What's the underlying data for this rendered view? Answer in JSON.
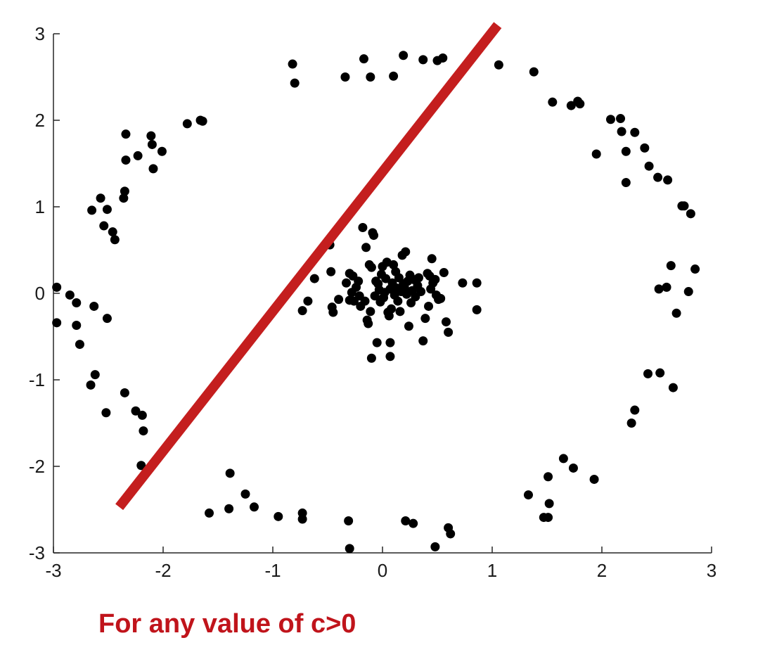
{
  "caption": "For any value of c>0",
  "colors": {
    "points": "#000000",
    "decision_line": "#c41e1e",
    "caption": "#c0141b"
  },
  "chart_data": {
    "type": "scatter",
    "title": "",
    "xlabel": "",
    "ylabel": "",
    "xlim": [
      -3,
      3
    ],
    "ylim": [
      -3,
      3
    ],
    "xticks": [
      "-3",
      "-2",
      "-1",
      "0",
      "1",
      "2",
      "3"
    ],
    "yticks": [
      "-3",
      "-2",
      "-1",
      "0",
      "1",
      "2",
      "3"
    ],
    "grid": false,
    "decision_line": {
      "from": [
        -2.4,
        -2.47
      ],
      "to": [
        1.05,
        3.1
      ]
    },
    "series": [
      {
        "points": [
          [
            -0.82,
            2.65
          ],
          [
            -0.8,
            2.43
          ],
          [
            -0.34,
            2.5
          ],
          [
            -0.17,
            2.71
          ],
          [
            -0.11,
            2.5
          ],
          [
            0.1,
            2.51
          ],
          [
            0.19,
            2.75
          ],
          [
            0.37,
            2.7
          ],
          [
            0.5,
            2.69
          ],
          [
            0.55,
            2.72
          ],
          [
            1.06,
            2.64
          ],
          [
            1.38,
            2.56
          ],
          [
            1.55,
            2.21
          ],
          [
            1.72,
            2.17
          ],
          [
            1.78,
            2.22
          ],
          [
            1.8,
            2.19
          ],
          [
            1.95,
            1.61
          ],
          [
            2.08,
            2.01
          ],
          [
            2.17,
            2.02
          ],
          [
            2.18,
            1.87
          ],
          [
            2.22,
            1.64
          ],
          [
            2.22,
            1.28
          ],
          [
            2.3,
            1.86
          ],
          [
            2.39,
            1.68
          ],
          [
            2.43,
            1.47
          ],
          [
            2.51,
            1.34
          ],
          [
            2.6,
            1.31
          ],
          [
            2.73,
            1.01
          ],
          [
            2.75,
            1.01
          ],
          [
            2.81,
            0.92
          ],
          [
            2.63,
            0.32
          ],
          [
            2.85,
            0.28
          ],
          [
            2.52,
            0.05
          ],
          [
            2.59,
            0.07
          ],
          [
            2.79,
            0.02
          ],
          [
            2.68,
            -0.23
          ],
          [
            2.42,
            -0.93
          ],
          [
            2.53,
            -0.92
          ],
          [
            2.65,
            -1.09
          ],
          [
            2.3,
            -1.35
          ],
          [
            2.27,
            -1.5
          ],
          [
            1.93,
            -2.15
          ],
          [
            1.74,
            -2.02
          ],
          [
            1.65,
            -1.91
          ],
          [
            1.51,
            -2.12
          ],
          [
            1.52,
            -2.43
          ],
          [
            1.51,
            -2.59
          ],
          [
            1.47,
            -2.59
          ],
          [
            1.33,
            -2.33
          ],
          [
            0.6,
            -2.71
          ],
          [
            0.62,
            -2.78
          ],
          [
            0.48,
            -2.93
          ],
          [
            0.28,
            -2.66
          ],
          [
            0.21,
            -2.63
          ],
          [
            -0.3,
            -2.95
          ],
          [
            -0.31,
            -2.63
          ],
          [
            -0.73,
            -2.61
          ],
          [
            -0.73,
            -2.54
          ],
          [
            -0.95,
            -2.58
          ],
          [
            -1.17,
            -2.47
          ],
          [
            -1.25,
            -2.32
          ],
          [
            -1.4,
            -2.49
          ],
          [
            -1.39,
            -2.08
          ],
          [
            -1.58,
            -2.54
          ],
          [
            -2.2,
            -1.99
          ],
          [
            -2.18,
            -1.59
          ],
          [
            -2.19,
            -1.41
          ],
          [
            -2.25,
            -1.36
          ],
          [
            -2.35,
            -1.15
          ],
          [
            -2.52,
            -1.38
          ],
          [
            -2.62,
            -0.94
          ],
          [
            -2.66,
            -1.06
          ],
          [
            -2.76,
            -0.59
          ],
          [
            -2.79,
            -0.37
          ],
          [
            -2.79,
            -0.11
          ],
          [
            -2.85,
            -0.02
          ],
          [
            -2.97,
            0.07
          ],
          [
            -2.97,
            -0.34
          ],
          [
            -2.51,
            -0.29
          ],
          [
            -2.63,
            -0.15
          ],
          [
            -2.44,
            0.62
          ],
          [
            -2.46,
            0.71
          ],
          [
            -2.51,
            0.97
          ],
          [
            -2.54,
            0.78
          ],
          [
            -2.57,
            1.1
          ],
          [
            -2.65,
            0.96
          ],
          [
            -2.36,
            1.1
          ],
          [
            -2.35,
            1.18
          ],
          [
            -2.34,
            1.54
          ],
          [
            -2.34,
            1.84
          ],
          [
            -2.23,
            1.59
          ],
          [
            -2.11,
            1.82
          ],
          [
            -2.1,
            1.72
          ],
          [
            -2.09,
            1.44
          ],
          [
            -2.01,
            1.64
          ],
          [
            -1.78,
            1.96
          ],
          [
            -1.66,
            2.0
          ],
          [
            -1.64,
            1.99
          ],
          [
            -0.73,
            -0.2
          ],
          [
            -0.68,
            -0.09
          ],
          [
            -0.62,
            0.17
          ],
          [
            -0.55,
            0.52
          ],
          [
            -0.48,
            0.56
          ],
          [
            -0.47,
            0.25
          ],
          [
            -0.46,
            -0.16
          ],
          [
            -0.45,
            -0.22
          ],
          [
            -0.4,
            -0.07
          ],
          [
            -0.33,
            0.12
          ],
          [
            -0.3,
            -0.08
          ],
          [
            -0.28,
            0.01
          ],
          [
            -0.27,
            0.2
          ],
          [
            -0.26,
            -0.09
          ],
          [
            -0.24,
            0.07
          ],
          [
            -0.22,
            0.14
          ],
          [
            -0.21,
            -0.03
          ],
          [
            -0.2,
            -0.15
          ],
          [
            -0.18,
            0.76
          ],
          [
            -0.16,
            -0.09
          ],
          [
            -0.15,
            0.53
          ],
          [
            -0.14,
            -0.31
          ],
          [
            -0.13,
            -0.35
          ],
          [
            -0.12,
            0.33
          ],
          [
            -0.11,
            -0.21
          ],
          [
            -0.1,
            0.3
          ],
          [
            -0.09,
            0.7
          ],
          [
            -0.08,
            0.67
          ],
          [
            -0.07,
            -0.03
          ],
          [
            -0.06,
            0.14
          ],
          [
            -0.05,
            -0.57
          ],
          [
            -0.04,
            0.11
          ],
          [
            -0.03,
            0.04
          ],
          [
            -0.02,
            -0.1
          ],
          [
            -0.01,
            0.22
          ],
          [
            0.0,
            0.31
          ],
          [
            0.01,
            -0.05
          ],
          [
            0.02,
            0.01
          ],
          [
            0.03,
            0.17
          ],
          [
            0.04,
            0.36
          ],
          [
            0.05,
            -0.22
          ],
          [
            0.06,
            -0.26
          ],
          [
            0.07,
            0.05
          ],
          [
            0.08,
            -0.18
          ],
          [
            0.09,
            0.12
          ],
          [
            0.1,
            0.33
          ],
          [
            0.11,
            -0.02
          ],
          [
            0.12,
            0.25
          ],
          [
            0.13,
            0.06
          ],
          [
            0.14,
            -0.09
          ],
          [
            0.15,
            0.18
          ],
          [
            0.16,
            -0.21
          ],
          [
            0.17,
            0.02
          ],
          [
            0.18,
            0.44
          ],
          [
            0.19,
            0.11
          ],
          [
            0.2,
            0.07
          ],
          [
            0.21,
            0.48
          ],
          [
            0.22,
            -0.01
          ],
          [
            0.23,
            0.14
          ],
          [
            0.24,
            -0.38
          ],
          [
            0.25,
            0.21
          ],
          [
            0.26,
            -0.11
          ],
          [
            0.27,
            0.03
          ],
          [
            0.28,
            0.16
          ],
          [
            0.3,
            -0.04
          ],
          [
            0.32,
            0.09
          ],
          [
            0.33,
            0.18
          ],
          [
            0.35,
            0.02
          ],
          [
            0.37,
            -0.55
          ],
          [
            0.39,
            -0.29
          ],
          [
            0.41,
            0.23
          ],
          [
            0.42,
            -0.15
          ],
          [
            0.43,
            0.2
          ],
          [
            0.44,
            0.05
          ],
          [
            0.45,
            0.4
          ],
          [
            0.46,
            0.12
          ],
          [
            0.48,
            0.16
          ],
          [
            0.49,
            -0.02
          ],
          [
            0.51,
            -0.07
          ],
          [
            0.53,
            -0.06
          ],
          [
            0.56,
            0.24
          ],
          [
            0.58,
            -0.33
          ],
          [
            0.6,
            -0.45
          ],
          [
            0.73,
            0.12
          ],
          [
            0.86,
            0.12
          ],
          [
            0.86,
            -0.19
          ],
          [
            -0.1,
            -0.75
          ],
          [
            0.07,
            -0.73
          ],
          [
            0.07,
            -0.57
          ],
          [
            -0.3,
            0.23
          ]
        ]
      }
    ]
  }
}
